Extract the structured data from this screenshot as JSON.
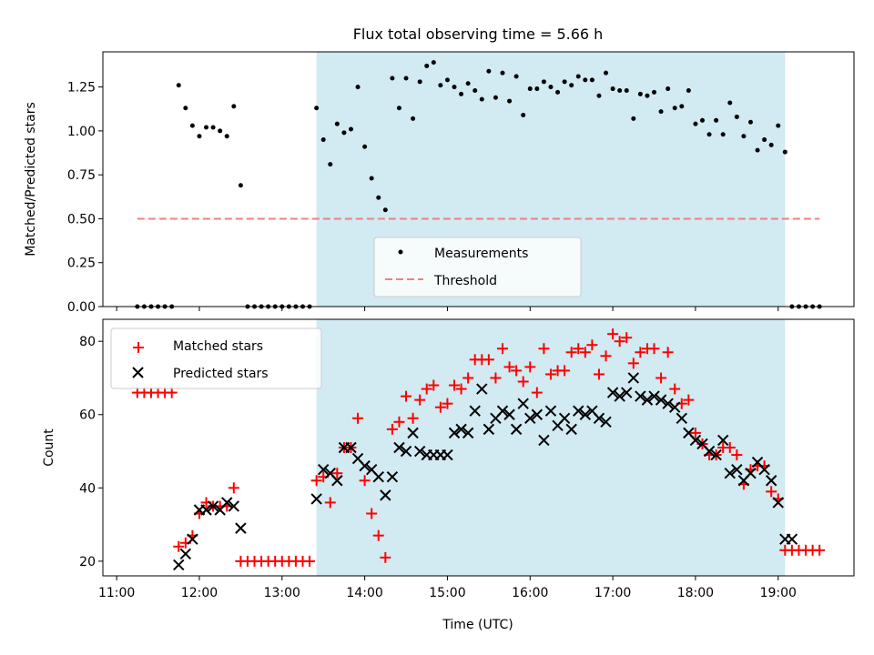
{
  "chart_data": [
    {
      "type": "scatter",
      "title": "Flux total observing time = 5.66 h",
      "xlabel": "",
      "ylabel": "Matched/Predicted stars",
      "xlim": [
        "10:50",
        "19:55"
      ],
      "ylim": [
        0,
        1.45
      ],
      "yticks": [
        "0.00",
        "0.25",
        "0.50",
        "0.75",
        "1.00",
        "1.25"
      ],
      "yticks_values": [
        0,
        0.25,
        0.5,
        0.75,
        1.0,
        1.25
      ],
      "xticks": [
        "11:00",
        "12:00",
        "13:00",
        "14:00",
        "15:00",
        "16:00",
        "17:00",
        "18:00",
        "19:00"
      ],
      "shaded_interval": {
        "start": "13:25",
        "end": "19:05",
        "color": "#add8e6"
      },
      "threshold": {
        "name": "Threshold",
        "value": 0.5,
        "x_start": "11:15",
        "x_end": "19:30",
        "color": "#f08080"
      },
      "legend": {
        "position": "lower-center",
        "entries": [
          "Measurements",
          "Threshold"
        ]
      },
      "series": [
        {
          "name": "Measurements",
          "color": "#000000",
          "x": [
            "11:15",
            "11:20",
            "11:25",
            "11:30",
            "11:35",
            "11:40",
            "11:45",
            "11:50",
            "11:55",
            "12:00",
            "12:05",
            "12:10",
            "12:15",
            "12:20",
            "12:25",
            "12:30",
            "12:35",
            "12:40",
            "12:45",
            "12:50",
            "12:55",
            "13:00",
            "13:05",
            "13:10",
            "13:15",
            "13:20",
            "13:25",
            "13:30",
            "13:35",
            "13:40",
            "13:45",
            "13:50",
            "13:55",
            "14:00",
            "14:05",
            "14:10",
            "14:15",
            "14:20",
            "14:25",
            "14:30",
            "14:35",
            "14:40",
            "14:45",
            "14:50",
            "14:55",
            "15:00",
            "15:05",
            "15:10",
            "15:15",
            "15:20",
            "15:25",
            "15:30",
            "15:35",
            "15:40",
            "15:45",
            "15:50",
            "15:55",
            "16:00",
            "16:05",
            "16:10",
            "16:15",
            "16:20",
            "16:25",
            "16:30",
            "16:35",
            "16:40",
            "16:45",
            "16:50",
            "16:55",
            "17:00",
            "17:05",
            "17:10",
            "17:15",
            "17:20",
            "17:25",
            "17:30",
            "17:35",
            "17:40",
            "17:45",
            "17:50",
            "17:55",
            "18:00",
            "18:05",
            "18:10",
            "18:15",
            "18:20",
            "18:25",
            "18:30",
            "18:35",
            "18:40",
            "18:45",
            "18:50",
            "18:55",
            "19:00",
            "19:05",
            "19:10",
            "19:15",
            "19:20",
            "19:25",
            "19:30"
          ],
          "values": [
            0,
            0,
            0,
            0,
            0,
            0,
            1.26,
            1.13,
            1.03,
            0.97,
            1.02,
            1.02,
            1.0,
            0.97,
            1.14,
            0.69,
            0,
            0,
            0,
            0,
            0,
            0,
            0,
            0,
            0,
            0,
            1.13,
            0.95,
            0.81,
            1.04,
            0.99,
            1.01,
            1.25,
            0.91,
            0.73,
            0.62,
            0.55,
            1.3,
            1.13,
            1.3,
            1.07,
            1.28,
            1.37,
            1.39,
            1.26,
            1.29,
            1.25,
            1.21,
            1.27,
            1.23,
            1.18,
            1.34,
            1.19,
            1.33,
            1.17,
            1.31,
            1.09,
            1.24,
            1.24,
            1.28,
            1.25,
            1.22,
            1.28,
            1.26,
            1.31,
            1.29,
            1.29,
            1.2,
            1.33,
            1.24,
            1.23,
            1.23,
            1.07,
            1.21,
            1.2,
            1.22,
            1.11,
            1.24,
            1.13,
            1.14,
            1.23,
            1.04,
            1.06,
            0.98,
            1.06,
            0.98,
            1.16,
            1.08,
            0.97,
            1.05,
            0.89,
            0.95,
            0.92,
            1.03,
            0.88,
            0,
            0,
            0,
            0,
            0
          ]
        }
      ]
    },
    {
      "type": "scatter",
      "title": "",
      "xlabel": "Time (UTC)",
      "ylabel": "Count",
      "xlim": [
        "10:50",
        "19:55"
      ],
      "ylim": [
        16,
        86
      ],
      "yticks": [
        "20",
        "40",
        "60",
        "80"
      ],
      "yticks_values": [
        20,
        40,
        60,
        80
      ],
      "xticks": [
        "11:00",
        "12:00",
        "13:00",
        "14:00",
        "15:00",
        "16:00",
        "17:00",
        "18:00",
        "19:00"
      ],
      "shaded_interval": {
        "start": "13:25",
        "end": "19:05",
        "color": "#add8e6"
      },
      "legend": {
        "position": "top-left",
        "entries": [
          "Matched stars",
          "Predicted stars"
        ]
      },
      "series": [
        {
          "name": "Matched stars",
          "marker": "plus",
          "color": "#ff0000",
          "x": [
            "11:15",
            "11:20",
            "11:25",
            "11:30",
            "11:35",
            "11:40",
            "11:45",
            "11:50",
            "11:55",
            "12:00",
            "12:05",
            "12:10",
            "12:15",
            "12:20",
            "12:25",
            "12:30",
            "12:35",
            "12:40",
            "12:45",
            "12:50",
            "12:55",
            "13:00",
            "13:05",
            "13:10",
            "13:15",
            "13:20",
            "13:25",
            "13:30",
            "13:35",
            "13:40",
            "13:45",
            "13:50",
            "13:55",
            "14:00",
            "14:05",
            "14:10",
            "14:15",
            "14:20",
            "14:25",
            "14:30",
            "14:35",
            "14:40",
            "14:45",
            "14:50",
            "14:55",
            "15:00",
            "15:05",
            "15:10",
            "15:15",
            "15:20",
            "15:25",
            "15:30",
            "15:35",
            "15:40",
            "15:45",
            "15:50",
            "15:55",
            "16:00",
            "16:05",
            "16:10",
            "16:15",
            "16:20",
            "16:25",
            "16:30",
            "16:35",
            "16:40",
            "16:45",
            "16:50",
            "16:55",
            "17:00",
            "17:05",
            "17:10",
            "17:15",
            "17:20",
            "17:25",
            "17:30",
            "17:35",
            "17:40",
            "17:45",
            "17:50",
            "17:55",
            "18:00",
            "18:05",
            "18:10",
            "18:15",
            "18:20",
            "18:25",
            "18:30",
            "18:35",
            "18:40",
            "18:45",
            "18:50",
            "18:55",
            "19:00",
            "19:05",
            "19:10",
            "19:15",
            "19:20",
            "19:25",
            "19:30"
          ],
          "values": [
            66,
            66,
            66,
            66,
            66,
            66,
            24,
            25,
            27,
            33,
            36,
            35,
            35,
            35,
            40,
            20,
            20,
            20,
            20,
            20,
            20,
            20,
            20,
            20,
            20,
            20,
            42,
            43,
            36,
            44,
            51,
            51,
            59,
            42,
            33,
            27,
            21,
            56,
            58,
            65,
            59,
            64,
            67,
            68,
            62,
            63,
            68,
            67,
            70,
            75,
            75,
            75,
            70,
            78,
            73,
            72,
            69,
            73,
            66,
            78,
            71,
            72,
            72,
            77,
            78,
            77,
            79,
            71,
            76,
            82,
            80,
            81,
            74,
            77,
            78,
            78,
            70,
            77,
            67,
            63,
            64,
            55,
            52,
            49,
            49,
            51,
            51,
            49,
            41,
            45,
            46,
            46,
            39,
            37,
            23,
            23,
            23,
            23,
            23,
            23
          ]
        },
        {
          "name": "Predicted stars",
          "marker": "x",
          "color": "#000000",
          "x": [
            "11:45",
            "11:50",
            "11:55",
            "12:00",
            "12:05",
            "12:10",
            "12:15",
            "12:20",
            "12:25",
            "12:30",
            "13:25",
            "13:30",
            "13:35",
            "13:40",
            "13:45",
            "13:50",
            "13:55",
            "14:00",
            "14:05",
            "14:10",
            "14:15",
            "14:20",
            "14:25",
            "14:30",
            "14:35",
            "14:40",
            "14:45",
            "14:50",
            "14:55",
            "15:00",
            "15:05",
            "15:10",
            "15:15",
            "15:20",
            "15:25",
            "15:30",
            "15:35",
            "15:40",
            "15:45",
            "15:50",
            "15:55",
            "16:00",
            "16:05",
            "16:10",
            "16:15",
            "16:20",
            "16:25",
            "16:30",
            "16:35",
            "16:40",
            "16:45",
            "16:50",
            "16:55",
            "17:00",
            "17:05",
            "17:10",
            "17:15",
            "17:20",
            "17:25",
            "17:30",
            "17:35",
            "17:40",
            "17:45",
            "17:50",
            "17:55",
            "18:00",
            "18:05",
            "18:10",
            "18:15",
            "18:20",
            "18:25",
            "18:30",
            "18:35",
            "18:40",
            "18:45",
            "18:50",
            "18:55",
            "19:00",
            "19:05",
            "19:10"
          ],
          "values": [
            19,
            22,
            26,
            34,
            34,
            35,
            34,
            36,
            35,
            29,
            37,
            45,
            44,
            42,
            51,
            51,
            48,
            46,
            45,
            43,
            38,
            43,
            51,
            50,
            55,
            50,
            49,
            49,
            49,
            49,
            55,
            56,
            55,
            61,
            67,
            56,
            59,
            61,
            60,
            56,
            63,
            59,
            60,
            53,
            61,
            57,
            59,
            56,
            61,
            60,
            61,
            59,
            58,
            66,
            65,
            66,
            70,
            65,
            64,
            65,
            64,
            63,
            62,
            59,
            55,
            53,
            52,
            50,
            49,
            53,
            44,
            45,
            42,
            44,
            47,
            45,
            42,
            36,
            26,
            26
          ]
        }
      ]
    }
  ]
}
